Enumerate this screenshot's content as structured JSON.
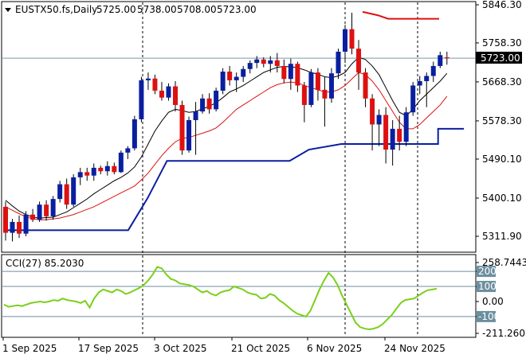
{
  "chart_data": [
    {
      "type": "candlestick",
      "symbol_line": "EUSTX50.fs,Daily",
      "ohlc_header": [
        "5725.00",
        "5738.00",
        "5708.00",
        "5723.00"
      ],
      "y_ticks": [
        "5846.30",
        "5758.30",
        "5668.30",
        "5578.30",
        "5490.10",
        "5400.10",
        "5311.90"
      ],
      "ylim": [
        5285,
        5855
      ],
      "last_price": "5723.00",
      "x_labels": [
        "1 Sep 2025",
        "17 Sep 2025",
        "3 Oct 2025",
        "21 Oct 2025",
        "6 Nov 2025",
        "24 Nov 2025"
      ],
      "candles": [
        [
          5380,
          5392,
          5302,
          5320
        ],
        [
          5320,
          5352,
          5300,
          5345
        ],
        [
          5345,
          5360,
          5308,
          5318
        ],
        [
          5318,
          5370,
          5312,
          5362
        ],
        [
          5362,
          5375,
          5345,
          5350
        ],
        [
          5350,
          5392,
          5345,
          5385
        ],
        [
          5385,
          5395,
          5348,
          5358
        ],
        [
          5358,
          5405,
          5350,
          5398
        ],
        [
          5398,
          5440,
          5390,
          5432
        ],
        [
          5432,
          5445,
          5375,
          5385
        ],
        [
          5385,
          5455,
          5380,
          5448
        ],
        [
          5448,
          5470,
          5430,
          5460
        ],
        [
          5460,
          5470,
          5440,
          5452
        ],
        [
          5452,
          5480,
          5440,
          5470
        ],
        [
          5470,
          5475,
          5455,
          5462
        ],
        [
          5462,
          5485,
          5452,
          5474
        ],
        [
          5474,
          5482,
          5455,
          5460
        ],
        [
          5460,
          5510,
          5458,
          5505
        ],
        [
          5505,
          5520,
          5490,
          5515
        ],
        [
          5515,
          5590,
          5510,
          5582
        ],
        [
          5582,
          5680,
          5575,
          5672
        ],
        [
          5672,
          5690,
          5650,
          5676
        ],
        [
          5676,
          5685,
          5640,
          5648
        ],
        [
          5648,
          5668,
          5625,
          5632
        ],
        [
          5632,
          5665,
          5625,
          5658
        ],
        [
          5658,
          5670,
          5600,
          5615
        ],
        [
          5615,
          5625,
          5500,
          5510
        ],
        [
          5510,
          5588,
          5505,
          5580
        ],
        [
          5580,
          5622,
          5500,
          5600
        ],
        [
          5600,
          5640,
          5595,
          5630
        ],
        [
          5630,
          5642,
          5595,
          5605
        ],
        [
          5605,
          5655,
          5600,
          5648
        ],
        [
          5648,
          5700,
          5640,
          5692
        ],
        [
          5692,
          5705,
          5660,
          5672
        ],
        [
          5672,
          5690,
          5645,
          5680
        ],
        [
          5680,
          5705,
          5668,
          5698
        ],
        [
          5698,
          5718,
          5688,
          5712
        ],
        [
          5712,
          5728,
          5700,
          5720
        ],
        [
          5720,
          5725,
          5702,
          5710
        ],
        [
          5710,
          5728,
          5690,
          5718
        ],
        [
          5718,
          5735,
          5690,
          5705
        ],
        [
          5705,
          5720,
          5665,
          5675
        ],
        [
          5675,
          5722,
          5650,
          5710
        ],
        [
          5710,
          5715,
          5645,
          5660
        ],
        [
          5660,
          5668,
          5575,
          5615
        ],
        [
          5615,
          5698,
          5610,
          5690
        ],
        [
          5690,
          5700,
          5625,
          5650
        ],
        [
          5650,
          5680,
          5565,
          5630
        ],
        [
          5630,
          5700,
          5620,
          5688
        ],
        [
          5688,
          5745,
          5675,
          5738
        ],
        [
          5738,
          5800,
          5712,
          5790
        ],
        [
          5790,
          5828,
          5732,
          5745
        ],
        [
          5745,
          5765,
          5650,
          5690
        ],
        [
          5690,
          5700,
          5610,
          5630
        ],
        [
          5630,
          5640,
          5510,
          5570
        ],
        [
          5570,
          5605,
          5520,
          5592
        ],
        [
          5592,
          5610,
          5480,
          5512
        ],
        [
          5512,
          5580,
          5475,
          5560
        ],
        [
          5560,
          5590,
          5510,
          5530
        ],
        [
          5530,
          5610,
          5520,
          5598
        ],
        [
          5598,
          5668,
          5590,
          5660
        ],
        [
          5660,
          5682,
          5640,
          5670
        ],
        [
          5670,
          5690,
          5610,
          5682
        ],
        [
          5682,
          5715,
          5668,
          5705
        ],
        [
          5705,
          5738,
          5700,
          5730
        ],
        [
          5725,
          5738,
          5708,
          5723
        ]
      ],
      "ma_fast": [
        5395,
        5382,
        5370,
        5362,
        5356,
        5354,
        5355,
        5356,
        5362,
        5368,
        5378,
        5388,
        5398,
        5410,
        5420,
        5430,
        5440,
        5448,
        5458,
        5472,
        5495,
        5525,
        5555,
        5578,
        5598,
        5605,
        5602,
        5598,
        5600,
        5606,
        5612,
        5620,
        5632,
        5645,
        5652,
        5660,
        5670,
        5680,
        5690,
        5696,
        5702,
        5704,
        5703,
        5701,
        5696,
        5690,
        5686,
        5680,
        5678,
        5682,
        5690,
        5710,
        5725,
        5720,
        5705,
        5685,
        5655,
        5625,
        5598,
        5590,
        5605,
        5625,
        5640,
        5655,
        5670,
        5688
      ],
      "ma_slow": [
        5380,
        5372,
        5364,
        5357,
        5352,
        5350,
        5350,
        5352,
        5354,
        5358,
        5362,
        5368,
        5374,
        5380,
        5388,
        5396,
        5404,
        5412,
        5420,
        5428,
        5442,
        5458,
        5478,
        5498,
        5515,
        5530,
        5538,
        5540,
        5545,
        5550,
        5555,
        5562,
        5575,
        5590,
        5605,
        5615,
        5625,
        5635,
        5645,
        5655,
        5662,
        5666,
        5668,
        5666,
        5660,
        5655,
        5650,
        5645,
        5645,
        5650,
        5660,
        5675,
        5690,
        5685,
        5670,
        5650,
        5625,
        5600,
        5575,
        5560,
        5560,
        5570,
        5585,
        5600,
        5615,
        5635
      ],
      "stop_line": [
        [
          0,
          5326
        ],
        [
          19,
          5326
        ],
        [
          22,
          5400
        ],
        [
          25,
          5486
        ],
        [
          44,
          5486
        ],
        [
          47,
          5512
        ],
        [
          52,
          5525
        ],
        [
          54,
          5525
        ],
        [
          55,
          5525
        ],
        [
          67,
          5525
        ],
        [
          67,
          5560
        ],
        [
          71,
          5560
        ]
      ],
      "stop_line_red": [
        [
          70,
          5830
        ],
        [
          73,
          5822
        ],
        [
          75,
          5814
        ],
        [
          85,
          5814
        ]
      ],
      "cci": {
        "label": "CCI(27) 85.2030",
        "y_ticks": [
          "258.7443",
          "200",
          "100",
          "0.00",
          "-100",
          "-211.2605"
        ],
        "levels": [
          200,
          100,
          -100
        ],
        "ylim": [
          -211.2605,
          258.7443
        ],
        "values": [
          -20,
          -35,
          -30,
          -25,
          -30,
          -20,
          -10,
          -5,
          0,
          -5,
          0,
          10,
          5,
          20,
          10,
          5,
          0,
          -10,
          5,
          -40,
          20,
          60,
          80,
          70,
          60,
          80,
          70,
          50,
          60,
          75,
          90,
          110,
          140,
          180,
          230,
          220,
          180,
          150,
          140,
          120,
          115,
          110,
          100,
          80,
          60,
          70,
          50,
          40,
          60,
          70,
          75,
          100,
          90,
          80,
          60,
          50,
          45,
          20,
          25,
          50,
          40,
          10,
          -10,
          -35,
          -60,
          -80,
          -90,
          -100,
          -60,
          10,
          80,
          140,
          190,
          160,
          110,
          40,
          -20,
          -80,
          -140,
          -170,
          -180,
          -185,
          -180,
          -170,
          -150,
          -120,
          -90,
          -50,
          -10,
          10,
          15,
          20,
          40,
          60,
          75,
          80,
          85
        ]
      }
    }
  ]
}
